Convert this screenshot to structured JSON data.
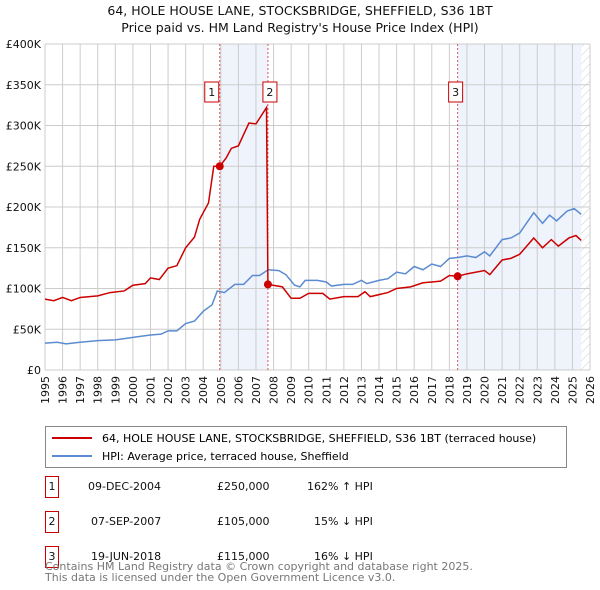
{
  "chart_data": {
    "type": "line",
    "title": "64, HOLE HOUSE LANE, STOCKSBRIDGE, SHEFFIELD, S36 1BT",
    "subtitle": "Price paid vs. HM Land Registry's House Price Index (HPI)",
    "xlim": [
      1995,
      2026
    ],
    "ylim": [
      0,
      400000
    ],
    "x_ticks": [
      "1995",
      "1996",
      "1997",
      "1998",
      "1999",
      "2000",
      "2001",
      "2002",
      "2003",
      "2004",
      "2005",
      "2006",
      "2007",
      "2008",
      "2009",
      "2010",
      "2011",
      "2012",
      "2013",
      "2014",
      "2015",
      "2016",
      "2017",
      "2018",
      "2019",
      "2020",
      "2021",
      "2022",
      "2023",
      "2024",
      "2025",
      "2026"
    ],
    "y_ticks": [
      {
        "v": 0,
        "label": "£0"
      },
      {
        "v": 50000,
        "label": "£50K"
      },
      {
        "v": 100000,
        "label": "£100K"
      },
      {
        "v": 150000,
        "label": "£150K"
      },
      {
        "v": 200000,
        "label": "£200K"
      },
      {
        "v": 250000,
        "label": "£250K"
      },
      {
        "v": 300000,
        "label": "£300K"
      },
      {
        "v": 350000,
        "label": "£350K"
      },
      {
        "v": 400000,
        "label": "£400K"
      }
    ],
    "grid": true,
    "series": [
      {
        "name": "64, HOLE HOUSE LANE, STOCKSBRIDGE, SHEFFIELD, S36 1BT (terraced house)",
        "color": "#cc0000",
        "points": [
          [
            1995,
            87000
          ],
          [
            1995.5,
            85000
          ],
          [
            1996,
            89000
          ],
          [
            1996.5,
            85000
          ],
          [
            1997,
            89000
          ],
          [
            1998,
            91000
          ],
          [
            1998.7,
            95000
          ],
          [
            1999.5,
            97000
          ],
          [
            2000,
            104000
          ],
          [
            2000.7,
            106000
          ],
          [
            2001,
            113000
          ],
          [
            2001.5,
            111000
          ],
          [
            2002,
            125000
          ],
          [
            2002.5,
            128000
          ],
          [
            2003,
            150000
          ],
          [
            2003.5,
            163000
          ],
          [
            2003.8,
            185000
          ],
          [
            2004.3,
            205000
          ],
          [
            2004.6,
            250000
          ],
          [
            2004.94,
            250000
          ],
          [
            2005.3,
            260000
          ],
          [
            2005.6,
            272000
          ],
          [
            2006,
            275000
          ],
          [
            2006.6,
            303000
          ],
          [
            2007,
            302000
          ],
          [
            2007.6,
            322000
          ],
          [
            2007.68,
            105000
          ],
          [
            2008.5,
            102000
          ],
          [
            2009,
            88000
          ],
          [
            2009.5,
            88000
          ],
          [
            2010,
            94000
          ],
          [
            2010.8,
            94000
          ],
          [
            2011.2,
            87000
          ],
          [
            2012,
            90000
          ],
          [
            2012.8,
            90000
          ],
          [
            2013.2,
            96000
          ],
          [
            2013.5,
            90000
          ],
          [
            2014.5,
            95000
          ],
          [
            2015,
            100000
          ],
          [
            2015.8,
            102000
          ],
          [
            2016.5,
            107000
          ],
          [
            2017,
            108000
          ],
          [
            2017.5,
            109000
          ],
          [
            2018,
            116000
          ],
          [
            2018.47,
            115000
          ],
          [
            2019,
            118000
          ],
          [
            2020,
            122000
          ],
          [
            2020.3,
            117000
          ],
          [
            2021,
            135000
          ],
          [
            2021.5,
            137000
          ],
          [
            2022,
            142000
          ],
          [
            2022.8,
            162000
          ],
          [
            2023.3,
            150000
          ],
          [
            2023.8,
            160000
          ],
          [
            2024.2,
            152000
          ],
          [
            2024.8,
            162000
          ],
          [
            2025.2,
            165000
          ],
          [
            2025.5,
            159000
          ]
        ]
      },
      {
        "name": "HPI: Average price, terraced house, Sheffield",
        "color": "#5b8bd0",
        "points": [
          [
            1995,
            33000
          ],
          [
            1995.7,
            34000
          ],
          [
            1996.2,
            32000
          ],
          [
            1997,
            34000
          ],
          [
            1998,
            36000
          ],
          [
            1999,
            37000
          ],
          [
            2000,
            40000
          ],
          [
            2001,
            43000
          ],
          [
            2001.6,
            44000
          ],
          [
            2002,
            48000
          ],
          [
            2002.5,
            48000
          ],
          [
            2003,
            57000
          ],
          [
            2003.5,
            60000
          ],
          [
            2004,
            72000
          ],
          [
            2004.5,
            80000
          ],
          [
            2004.8,
            97000
          ],
          [
            2005.2,
            95000
          ],
          [
            2005.8,
            105000
          ],
          [
            2006.3,
            105000
          ],
          [
            2006.8,
            116000
          ],
          [
            2007.2,
            116000
          ],
          [
            2007.7,
            123000
          ],
          [
            2008.3,
            122000
          ],
          [
            2008.7,
            117000
          ],
          [
            2009.2,
            104000
          ],
          [
            2009.5,
            102000
          ],
          [
            2009.8,
            110000
          ],
          [
            2010.5,
            110000
          ],
          [
            2011,
            108000
          ],
          [
            2011.3,
            103000
          ],
          [
            2012,
            105000
          ],
          [
            2012.5,
            105000
          ],
          [
            2013,
            110000
          ],
          [
            2013.3,
            106000
          ],
          [
            2014,
            110000
          ],
          [
            2014.5,
            112000
          ],
          [
            2015,
            120000
          ],
          [
            2015.5,
            118000
          ],
          [
            2016,
            127000
          ],
          [
            2016.5,
            123000
          ],
          [
            2017,
            130000
          ],
          [
            2017.5,
            127000
          ],
          [
            2018,
            137000
          ],
          [
            2018.5,
            138000
          ],
          [
            2019,
            140000
          ],
          [
            2019.5,
            138000
          ],
          [
            2020,
            145000
          ],
          [
            2020.3,
            140000
          ],
          [
            2021,
            160000
          ],
          [
            2021.5,
            162000
          ],
          [
            2022,
            168000
          ],
          [
            2022.8,
            193000
          ],
          [
            2023.3,
            180000
          ],
          [
            2023.7,
            190000
          ],
          [
            2024.1,
            183000
          ],
          [
            2024.7,
            195000
          ],
          [
            2025.1,
            198000
          ],
          [
            2025.5,
            191000
          ]
        ]
      }
    ],
    "sales": [
      {
        "n": "1",
        "x": 2004.94,
        "y": 250000,
        "date": "09-DEC-2004",
        "price": "£250,000",
        "hpi": "162% ↑ HPI"
      },
      {
        "n": "2",
        "x": 2007.68,
        "y": 105000,
        "date": "07-SEP-2007",
        "price": "£105,000",
        "hpi": "15% ↓ HPI"
      },
      {
        "n": "3",
        "x": 2018.47,
        "y": 115000,
        "date": "19-JUN-2018",
        "price": "£115,000",
        "hpi": "16% ↓ HPI"
      }
    ],
    "shaded": [
      [
        2004.94,
        2007.68
      ],
      [
        2018.47,
        2025.5
      ]
    ],
    "hatched_from": 2025.5,
    "legend": "below"
  },
  "footer": {
    "line1": "Contains HM Land Registry data © Crown copyright and database right 2025.",
    "line2": "This data is licensed under the Open Government Licence v3.0."
  }
}
